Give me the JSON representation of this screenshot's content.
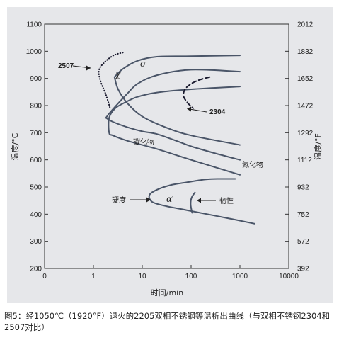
{
  "chart_data": {
    "type": "line",
    "xlabel": "时间/min",
    "ylabel_left": "温度/°C",
    "ylabel_right": "温度/°F",
    "x_scale": "log",
    "x_ticks": [
      "0",
      "1",
      "10",
      "100",
      "1000",
      "10000"
    ],
    "x_tick_values": [
      0.1,
      1,
      10,
      100,
      1000,
      10000
    ],
    "y_left_ticks": [
      200,
      300,
      400,
      500,
      600,
      700,
      800,
      900,
      1000,
      1100
    ],
    "y_right_ticks": [
      392,
      572,
      752,
      932,
      1112,
      1292,
      1472,
      1652,
      1832,
      2012
    ],
    "ylim": [
      200,
      1100
    ],
    "xlim": [
      0.1,
      10000
    ],
    "series": [
      {
        "style": "solid",
        "points": [
          [
            1000,
            985
          ],
          [
            100,
            982
          ],
          [
            20,
            980
          ],
          [
            8,
            965
          ],
          [
            4,
            935
          ],
          [
            2.7,
            905
          ]
        ]
      },
      {
        "style": "solid",
        "points": [
          [
            1000,
            925
          ],
          [
            100,
            932
          ],
          [
            20,
            912
          ],
          [
            8,
            880
          ],
          [
            5,
            845
          ],
          [
            3.2,
            808
          ],
          [
            2.2,
            775
          ],
          [
            1.8,
            755
          ]
        ]
      },
      {
        "style": "solid",
        "points": [
          [
            1000,
            870
          ],
          [
            100,
            860
          ],
          [
            20,
            848
          ],
          [
            8,
            832
          ],
          [
            4.5,
            812
          ],
          [
            2.8,
            790
          ],
          [
            2.1,
            755
          ],
          [
            2.1,
            700
          ],
          [
            2.5,
            690
          ],
          [
            5,
            670
          ],
          [
            20,
            640
          ],
          [
            100,
            600
          ],
          [
            1000,
            545
          ]
        ]
      },
      {
        "style": "solid",
        "points": [
          [
            2.7,
            905
          ],
          [
            3.2,
            860
          ],
          [
            5,
            808
          ],
          [
            10,
            760
          ],
          [
            30,
            720
          ],
          [
            100,
            690
          ],
          [
            1000,
            655
          ]
        ]
      },
      {
        "style": "solid",
        "points": [
          [
            1.8,
            755
          ],
          [
            2.5,
            740
          ],
          [
            5,
            720
          ],
          [
            10,
            705
          ],
          [
            20,
            695
          ],
          [
            50,
            670
          ],
          [
            100,
            650
          ],
          [
            300,
            625
          ],
          [
            1000,
            600
          ]
        ]
      },
      {
        "style": "dotted",
        "name": "2507",
        "points": [
          [
            4,
            995
          ],
          [
            2.6,
            985
          ],
          [
            1.7,
            960
          ],
          [
            1.3,
            930
          ],
          [
            1.4,
            890
          ],
          [
            1.8,
            840
          ],
          [
            2.2,
            790
          ]
        ]
      },
      {
        "style": "dashed",
        "name": "2304",
        "points": [
          [
            240,
            905
          ],
          [
            150,
            895
          ],
          [
            100,
            880
          ],
          [
            75,
            860
          ],
          [
            70,
            835
          ],
          [
            85,
            810
          ],
          [
            110,
            790
          ]
        ]
      },
      {
        "style": "solid",
        "points": [
          [
            800,
            530
          ],
          [
            400,
            530
          ],
          [
            200,
            528
          ],
          [
            80,
            517
          ],
          [
            40,
            508
          ],
          [
            20,
            490
          ],
          [
            14,
            470
          ],
          [
            16,
            445
          ],
          [
            30,
            430
          ],
          [
            80,
            415
          ],
          [
            300,
            395
          ],
          [
            2000,
            365
          ]
        ]
      },
      {
        "style": "solid",
        "points": [
          [
            120,
            480
          ],
          [
            102,
            460
          ],
          [
            98,
            435
          ],
          [
            105,
            405
          ]
        ]
      }
    ],
    "annotations": [
      "2507",
      "2304",
      "σ",
      "χ",
      "碳化物",
      "氮化物",
      "α′",
      "硬度",
      "韧性"
    ]
  },
  "caption": "图5：经1050℃（1920°F）退火的2205双相不锈钢等温析出曲线（与双相不锈钢2304和2507对比）"
}
